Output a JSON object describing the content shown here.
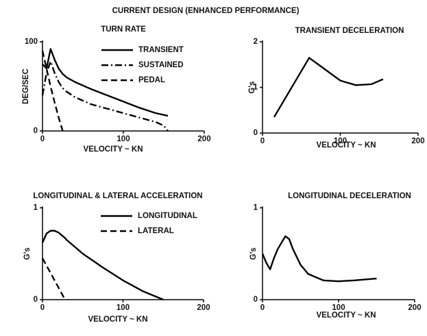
{
  "title": "CURRENT DESIGN (ENHANCED PERFORMANCE)",
  "chart_data": [
    {
      "type": "line",
      "title": "TURN RATE",
      "xlabel": "VELOCITY ~ KN",
      "ylabel": "DEG/SEC",
      "x": [
        0,
        5,
        10,
        15,
        20,
        25,
        30,
        40,
        60,
        80,
        100,
        120,
        140,
        150,
        155
      ],
      "series": [
        {
          "name": "TRANSIENT",
          "color": "#000000",
          "dash": "solid",
          "values": [
            75,
            70,
            92,
            80,
            70,
            64,
            60,
            55,
            47,
            40,
            33,
            26,
            20,
            18,
            17
          ]
        },
        {
          "name": "SUSTAINED",
          "color": "#000000",
          "dash": "dashdot",
          "values": [
            40,
            65,
            78,
            65,
            55,
            48,
            44,
            38,
            30,
            25,
            20,
            15,
            10,
            6,
            0
          ]
        },
        {
          "name": "PEDAL",
          "color": "#000000",
          "dash": "dashed",
          "values": [
            90,
            70,
            50,
            32,
            15,
            0,
            null,
            null,
            null,
            null,
            null,
            null,
            null,
            null,
            null
          ]
        }
      ],
      "xlim": [
        0,
        200
      ],
      "ylim": [
        0,
        100
      ],
      "xticks": [
        0,
        100,
        200
      ],
      "yticks": [
        0,
        100
      ],
      "legend": "upper right"
    },
    {
      "type": "line",
      "title": "TRANSIENT DECELERATION",
      "xlabel": "VELOCITY ~ KN",
      "ylabel": "G's",
      "x": [
        15,
        60,
        80,
        100,
        120,
        140,
        155
      ],
      "values": [
        0.35,
        1.65,
        1.4,
        1.15,
        1.05,
        1.07,
        1.18
      ],
      "color": "#000000",
      "xlim": [
        0,
        200
      ],
      "ylim": [
        0,
        2
      ],
      "xticks": [
        0,
        100,
        200
      ],
      "yticks": [
        0,
        1,
        2
      ]
    },
    {
      "type": "line",
      "title": "LONGITUDINAL & LATERAL ACCELERATION",
      "xlabel": "VELOCITY ~ KN",
      "ylabel": "G's",
      "x": [
        0,
        5,
        10,
        15,
        20,
        28,
        30,
        50,
        75,
        100,
        125,
        150
      ],
      "series": [
        {
          "name": "LONGITUDINAL",
          "color": "#000000",
          "dash": "solid",
          "values": [
            0.62,
            0.72,
            0.75,
            0.75,
            0.73,
            0.67,
            0.65,
            0.5,
            0.35,
            0.21,
            0.09,
            0
          ]
        },
        {
          "name": "LATERAL",
          "color": "#000000",
          "dash": "dashed",
          "values": [
            0.45,
            0.37,
            0.29,
            0.21,
            0.13,
            0,
            null,
            null,
            null,
            null,
            null,
            null
          ]
        }
      ],
      "xlim": [
        0,
        200
      ],
      "ylim": [
        0,
        1
      ],
      "xticks": [
        0,
        100,
        200
      ],
      "yticks": [
        0,
        1
      ],
      "legend": "upper right"
    },
    {
      "type": "line",
      "title": "LONGITUDINAL DECELERATION",
      "xlabel": "VELOCITY ~ KN",
      "ylabel": "G's",
      "x": [
        0,
        5,
        10,
        15,
        20,
        30,
        35,
        40,
        50,
        60,
        80,
        100,
        120,
        150
      ],
      "values": [
        0.5,
        0.4,
        0.33,
        0.45,
        0.55,
        0.69,
        0.66,
        0.55,
        0.38,
        0.28,
        0.21,
        0.2,
        0.21,
        0.23
      ],
      "color": "#000000",
      "xlim": [
        0,
        200
      ],
      "ylim": [
        0,
        1
      ],
      "xticks": [
        0,
        100,
        200
      ],
      "yticks": [
        0,
        1
      ]
    }
  ]
}
